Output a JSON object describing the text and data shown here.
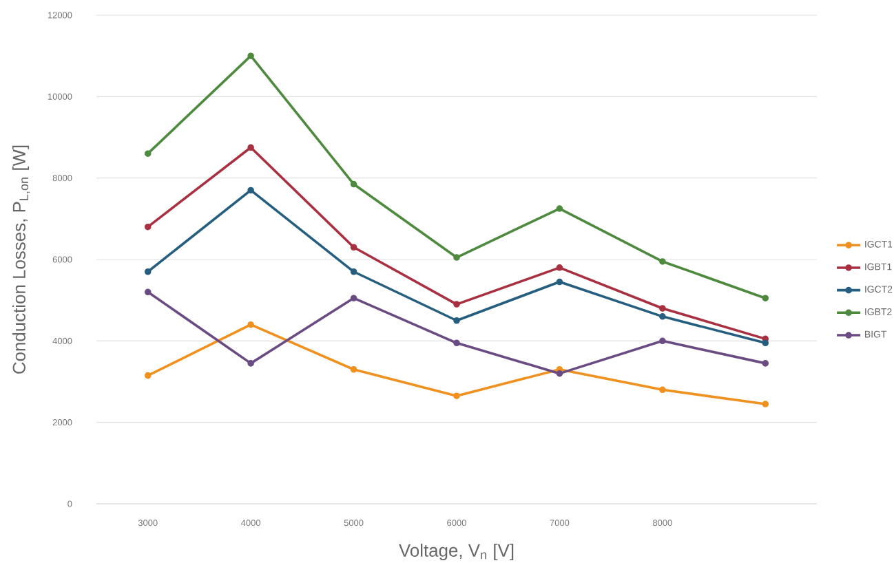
{
  "chart_data": {
    "type": "line",
    "xlabel": "Voltage, V$_{n}$ [V]",
    "ylabel": "Conduction Losses, P$_{L,on}$ [W]",
    "categories": [
      "3000",
      "4000",
      "5000",
      "6000",
      "7000",
      "8000",
      null
    ],
    "ylim": [
      0,
      12000
    ],
    "yticks": [
      0,
      2000,
      4000,
      6000,
      8000,
      10000,
      12000
    ],
    "grid": "y",
    "legend": "right",
    "marker": "circle",
    "line_style": "solid",
    "series": [
      {
        "name": "IGCT1",
        "color": "#f0901e",
        "values": [
          3150,
          4400,
          3300,
          2650,
          3300,
          2800,
          2450
        ]
      },
      {
        "name": "IGBT1",
        "color": "#a83040",
        "values": [
          6800,
          8750,
          6300,
          4900,
          5800,
          4800,
          4050
        ]
      },
      {
        "name": "IGCT2",
        "color": "#255e7e",
        "values": [
          5700,
          7700,
          5700,
          4500,
          5450,
          4600,
          3950
        ]
      },
      {
        "name": "IGBT2",
        "color": "#4e8a3e",
        "values": [
          8600,
          11000,
          7850,
          6050,
          7250,
          5950,
          5050
        ]
      },
      {
        "name": "BIGT",
        "color": "#6a4c82",
        "values": [
          5200,
          3450,
          5050,
          3950,
          3200,
          4000,
          3450
        ]
      }
    ]
  }
}
